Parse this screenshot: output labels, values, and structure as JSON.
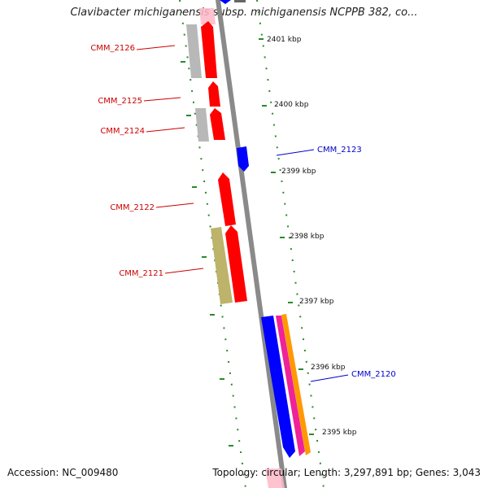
{
  "header": {
    "title": "Clavibacter michiganensis subsp. michiganensis NCPPB 382, co..."
  },
  "footer": {
    "accession": "Accession: NC_009480",
    "topology": "Topology: circular; Length: 3,297,891 bp; Genes: 3,043"
  },
  "colors": {
    "backbone": "#8a8a8a",
    "tick": "#2a8a2a",
    "forward_label": "#cc0000",
    "reverse_label": "#0000cc",
    "cds_red": "#ff0000",
    "cds_blue": "#0000ff",
    "cds_grey": "#b8b8b8",
    "cds_olive": "#bdb36a",
    "cds_magenta": "#ee2299",
    "cds_orange": "#ff9900",
    "highlight_pink": "#ffb8c8"
  },
  "scale_labels": [
    "2401 kbp",
    "2400 kbp",
    "2399 kbp",
    "2398 kbp",
    "2397 kbp",
    "2396 kbp",
    "2395 kbp"
  ],
  "gene_labels": [
    {
      "id": "g2126",
      "text": "CMM_2126",
      "strand": "forward"
    },
    {
      "id": "g2125",
      "text": "CMM_2125",
      "strand": "forward"
    },
    {
      "id": "g2124",
      "text": "CMM_2124",
      "strand": "forward"
    },
    {
      "id": "g2123",
      "text": "CMM_2123",
      "strand": "reverse"
    },
    {
      "id": "g2122",
      "text": "CMM_2122",
      "strand": "forward"
    },
    {
      "id": "g2121",
      "text": "CMM_2121",
      "strand": "forward"
    },
    {
      "id": "g2120",
      "text": "CMM_2120",
      "strand": "reverse"
    }
  ]
}
